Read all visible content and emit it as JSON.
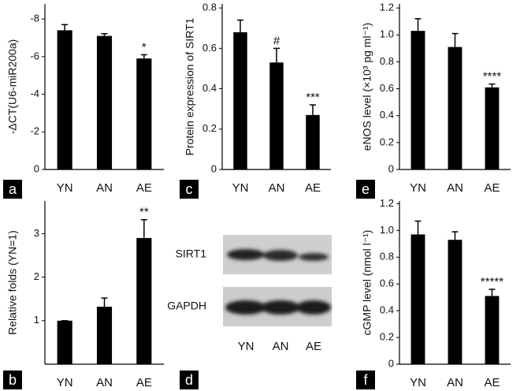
{
  "chart_data": [
    {
      "type": "bar",
      "panel": "a",
      "ylabel": "-ΔCT(U6-miR200a)",
      "categories": [
        "YN",
        "AN",
        "AE"
      ],
      "values": [
        -7.4,
        -7.1,
        -5.9
      ],
      "errors": [
        0.3,
        0.12,
        0.2
      ],
      "color": "#000000",
      "ylim": [
        0,
        -8.8
      ],
      "yticks": [
        0,
        -2,
        -4,
        -6,
        -8
      ],
      "annotations": [
        {
          "text": "*",
          "category": "AE"
        }
      ]
    },
    {
      "type": "bar",
      "panel": "c",
      "ylabel": "Protein expression of SIRT1",
      "categories": [
        "YN",
        "AN",
        "AE"
      ],
      "values": [
        0.68,
        0.53,
        0.27
      ],
      "errors": [
        0.06,
        0.07,
        0.05
      ],
      "color": "#000000",
      "ylim": [
        0,
        0.82
      ],
      "yticks": [
        0,
        0.2,
        0.4,
        0.6,
        0.8
      ],
      "annotations": [
        {
          "text": "#",
          "category": "AN"
        },
        {
          "text": "***",
          "category": "AE"
        }
      ]
    },
    {
      "type": "bar",
      "panel": "e",
      "ylabel": "eNOS level (×10³ pg ml⁻¹)",
      "categories": [
        "YN",
        "AN",
        "AE"
      ],
      "values": [
        1.03,
        0.91,
        0.61
      ],
      "errors": [
        0.09,
        0.1,
        0.025
      ],
      "color": "#000000",
      "ylim": [
        0,
        1.23
      ],
      "yticks": [
        0,
        0.2,
        0.4,
        0.6,
        0.8,
        {
          "value": 1,
          "label": "1.0"
        },
        1.2
      ],
      "annotations": [
        {
          "text": "****",
          "category": "AE"
        }
      ]
    },
    {
      "type": "bar",
      "panel": "b",
      "ylabel": "Relative folds (YN=1)",
      "categories": [
        "YN",
        "AN",
        "AE"
      ],
      "values": [
        1.0,
        1.32,
        2.9
      ],
      "errors": [
        0,
        0.2,
        0.42
      ],
      "color": "#000000",
      "ylim": [
        0,
        3.75
      ],
      "yticks": [
        1,
        2,
        3
      ],
      "annotations": [
        {
          "text": "**",
          "category": "AE"
        }
      ]
    },
    {
      "type": "blot",
      "panel": "d",
      "rows": [
        "SIRT1",
        "GAPDH"
      ],
      "categories": [
        "YN",
        "AN",
        "AE"
      ]
    },
    {
      "type": "bar",
      "panel": "f",
      "ylabel": "cGMP level (nmol l⁻¹)",
      "categories": [
        "YN",
        "AN",
        "AE"
      ],
      "values": [
        0.97,
        0.93,
        0.51
      ],
      "errors": [
        0.1,
        0.06,
        0.05
      ],
      "color": "#000000",
      "ylim": [
        0,
        1.22
      ],
      "yticks": [
        0,
        0.2,
        0.4,
        0.6,
        0.8,
        {
          "value": 1,
          "label": "1.0"
        },
        1.2
      ],
      "annotations": [
        {
          "text": "*****",
          "category": "AE"
        }
      ]
    }
  ]
}
